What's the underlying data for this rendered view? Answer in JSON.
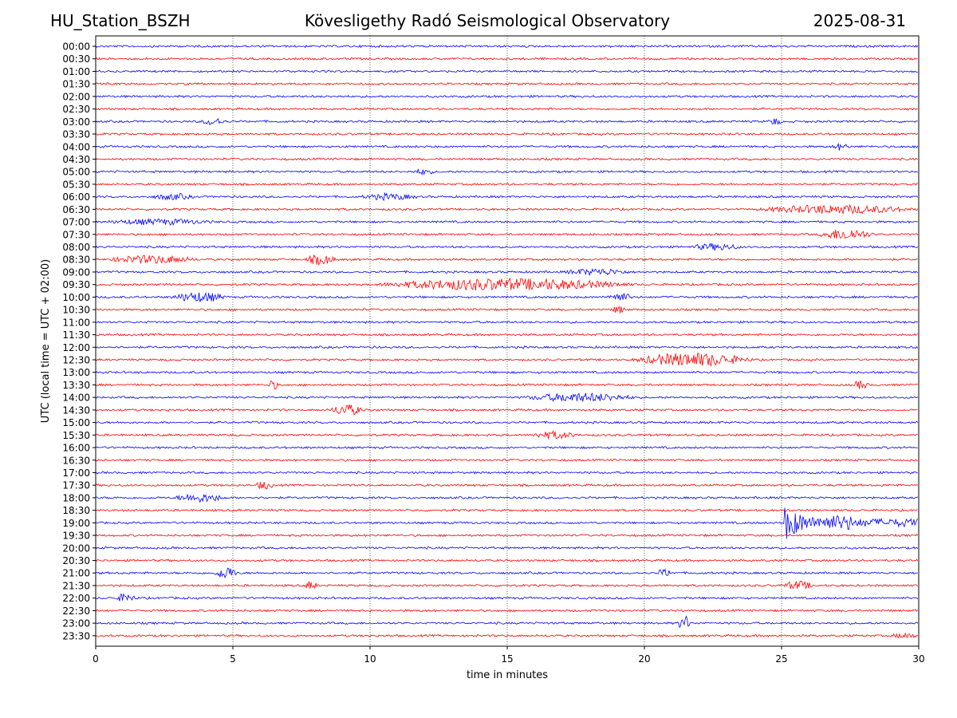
{
  "header": {
    "station": "HU_Station_BSZH",
    "observatory": "Kövesligethy Radó Seismological Observatory",
    "date": "2025-08-31"
  },
  "colors": {
    "even_row": "#0000ff",
    "odd_row": "#ff0000",
    "grid": "#000000"
  },
  "chart_data": {
    "type": "line",
    "title": "Kövesligethy Radó Seismological Observatory",
    "xlabel": "time in minutes",
    "ylabel": "UTC (local time = UTC + 02:00)",
    "xlim": [
      0,
      30
    ],
    "x_ticks": [
      "0",
      "5",
      "10",
      "15",
      "20",
      "25",
      "30"
    ],
    "grid": "vertical dotted lines at 5, 10, 15, 20, 25 minutes",
    "row_labels": [
      "00:00",
      "00:30",
      "01:00",
      "01:30",
      "02:00",
      "02:30",
      "03:00",
      "03:30",
      "04:00",
      "04:30",
      "05:00",
      "05:30",
      "06:00",
      "06:30",
      "07:00",
      "07:30",
      "08:00",
      "08:30",
      "09:00",
      "09:30",
      "10:00",
      "10:30",
      "11:00",
      "11:30",
      "12:00",
      "12:30",
      "13:00",
      "13:30",
      "14:00",
      "14:30",
      "15:00",
      "15:30",
      "16:00",
      "16:30",
      "17:00",
      "17:30",
      "18:00",
      "18:30",
      "19:00",
      "19:30",
      "20:00",
      "20:30",
      "21:00",
      "21:30",
      "22:00",
      "22:30",
      "23:00",
      "23:30"
    ],
    "series_color_rule": "alternating rows: blue on the hour, red on the half hour",
    "events": [
      {
        "row": "03:00",
        "start_min": 3.8,
        "end_min": 4.8,
        "amp": 0.25
      },
      {
        "row": "03:00",
        "start_min": 24.5,
        "end_min": 25.0,
        "amp": 0.25
      },
      {
        "row": "04:00",
        "start_min": 26.8,
        "end_min": 27.5,
        "amp": 0.22
      },
      {
        "row": "05:00",
        "start_min": 11.5,
        "end_min": 12.4,
        "amp": 0.18
      },
      {
        "row": "06:00",
        "start_min": 2.0,
        "end_min": 3.6,
        "amp": 0.2
      },
      {
        "row": "06:00",
        "start_min": 9.6,
        "end_min": 11.8,
        "amp": 0.2
      },
      {
        "row": "06:30",
        "start_min": 24.0,
        "end_min": 30.0,
        "amp": 0.3
      },
      {
        "row": "07:00",
        "start_min": 0.2,
        "end_min": 4.4,
        "amp": 0.18
      },
      {
        "row": "07:30",
        "start_min": 26.3,
        "end_min": 28.4,
        "amp": 0.4
      },
      {
        "row": "08:00",
        "start_min": 21.6,
        "end_min": 23.6,
        "amp": 0.22
      },
      {
        "row": "08:30",
        "start_min": 0.3,
        "end_min": 3.8,
        "amp": 0.28
      },
      {
        "row": "08:30",
        "start_min": 7.6,
        "end_min": 8.8,
        "amp": 0.35
      },
      {
        "row": "09:00",
        "start_min": 17.0,
        "end_min": 19.5,
        "amp": 0.22
      },
      {
        "row": "09:30",
        "start_min": 10.0,
        "end_min": 19.8,
        "amp": 0.42
      },
      {
        "row": "10:00",
        "start_min": 2.7,
        "end_min": 4.8,
        "amp": 0.35
      },
      {
        "row": "10:00",
        "start_min": 18.6,
        "end_min": 19.6,
        "amp": 0.3
      },
      {
        "row": "10:30",
        "start_min": 18.8,
        "end_min": 19.3,
        "amp": 0.28
      },
      {
        "row": "12:30",
        "start_min": 19.5,
        "end_min": 24.0,
        "amp": 0.5
      },
      {
        "row": "13:30",
        "start_min": 6.2,
        "end_min": 6.7,
        "amp": 0.3
      },
      {
        "row": "13:30",
        "start_min": 27.6,
        "end_min": 28.2,
        "amp": 0.3
      },
      {
        "row": "14:00",
        "start_min": 15.5,
        "end_min": 19.8,
        "amp": 0.3
      },
      {
        "row": "14:30",
        "start_min": 8.5,
        "end_min": 9.8,
        "amp": 0.4
      },
      {
        "row": "15:30",
        "start_min": 15.8,
        "end_min": 17.6,
        "amp": 0.25
      },
      {
        "row": "17:30",
        "start_min": 5.8,
        "end_min": 6.5,
        "amp": 0.28
      },
      {
        "row": "18:00",
        "start_min": 2.8,
        "end_min": 4.8,
        "amp": 0.3
      },
      {
        "row": "19:00",
        "start_min": 25.1,
        "end_min": 30.0,
        "amp": 1.4,
        "decay": true
      },
      {
        "row": "21:00",
        "start_min": 4.3,
        "end_min": 5.2,
        "amp": 0.45
      },
      {
        "row": "21:00",
        "start_min": 20.4,
        "end_min": 21.1,
        "amp": 0.25
      },
      {
        "row": "21:30",
        "start_min": 7.6,
        "end_min": 8.1,
        "amp": 0.3
      },
      {
        "row": "21:30",
        "start_min": 25.0,
        "end_min": 26.2,
        "amp": 0.3
      },
      {
        "row": "22:00",
        "start_min": 0.7,
        "end_min": 1.5,
        "amp": 0.3
      },
      {
        "row": "23:00",
        "start_min": 21.2,
        "end_min": 21.7,
        "amp": 0.55
      },
      {
        "row": "23:30",
        "start_min": 29.0,
        "end_min": 30.0,
        "amp": 0.18
      }
    ]
  }
}
